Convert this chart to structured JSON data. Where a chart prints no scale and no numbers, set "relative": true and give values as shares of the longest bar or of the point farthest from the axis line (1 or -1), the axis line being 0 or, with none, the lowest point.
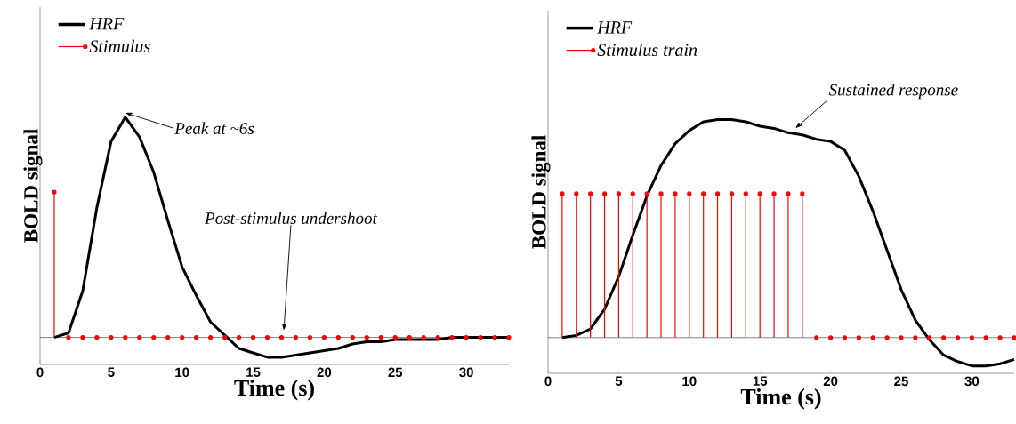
{
  "chart_data": [
    {
      "type": "line",
      "relative": true,
      "xlabel": "Time (s)",
      "ylabel": "BOLD signal",
      "xlim": [
        0,
        33
      ],
      "xticks": [
        0,
        5,
        10,
        15,
        20,
        25,
        30
      ],
      "legend": "top left",
      "x": [
        1,
        2,
        3,
        4,
        5,
        6,
        7,
        8,
        9,
        10,
        11,
        12,
        13,
        14,
        15,
        16,
        17,
        18,
        19,
        20,
        21,
        22,
        23,
        24,
        25,
        26,
        27,
        28,
        29,
        30,
        31,
        32,
        33
      ],
      "series": [
        {
          "name": "HRF",
          "color": "#000000",
          "marker": "none",
          "values": [
            0,
            0.02,
            0.21,
            0.59,
            0.89,
            1.0,
            0.91,
            0.75,
            0.53,
            0.32,
            0.19,
            0.07,
            0.01,
            -0.05,
            -0.07,
            -0.09,
            -0.09,
            -0.08,
            -0.07,
            -0.06,
            -0.05,
            -0.03,
            -0.02,
            -0.02,
            -0.01,
            -0.01,
            -0.01,
            -0.01,
            0,
            0,
            0,
            0,
            0
          ]
        },
        {
          "name": "Stimulus",
          "type": "lollipop",
          "color": "#ff0000",
          "marker": "circle",
          "values": [
            0.66,
            0,
            0,
            0,
            0,
            0,
            0,
            0,
            0,
            0,
            0,
            0,
            0,
            0,
            0,
            0,
            0,
            0,
            0,
            0,
            0,
            0,
            0,
            0,
            0,
            0,
            0,
            0,
            0,
            0,
            0,
            0,
            0
          ]
        }
      ],
      "annotations": [
        {
          "text": "Peak at ~6s",
          "x": 6,
          "y": 1.0
        },
        "Post-stimulus undershoot"
      ]
    },
    {
      "type": "line",
      "relative": true,
      "xlabel": "Time (s)",
      "ylabel": "BOLD signal",
      "xlim": [
        0,
        33
      ],
      "xticks": [
        0,
        5,
        10,
        15,
        20,
        25,
        30
      ],
      "legend": "top left",
      "x": [
        1,
        2,
        3,
        4,
        5,
        6,
        7,
        8,
        9,
        10,
        11,
        12,
        13,
        14,
        15,
        16,
        17,
        18,
        19,
        20,
        21,
        22,
        23,
        24,
        25,
        26,
        27,
        28,
        29,
        30,
        31,
        32,
        33
      ],
      "series": [
        {
          "name": "HRF",
          "color": "#000000",
          "marker": "none",
          "values": [
            0,
            0.01,
            0.04,
            0.13,
            0.28,
            0.47,
            0.65,
            0.79,
            0.89,
            0.95,
            0.99,
            1.0,
            1.0,
            0.99,
            0.97,
            0.96,
            0.94,
            0.93,
            0.91,
            0.9,
            0.86,
            0.74,
            0.58,
            0.4,
            0.22,
            0.08,
            -0.01,
            -0.08,
            -0.11,
            -0.13,
            -0.13,
            -0.12,
            -0.1
          ]
        },
        {
          "name": "Stimulus train",
          "type": "lollipop",
          "color": "#ff0000",
          "marker": "circle",
          "values": [
            0.66,
            0.66,
            0.66,
            0.66,
            0.66,
            0.66,
            0.66,
            0.66,
            0.66,
            0.66,
            0.66,
            0.66,
            0.66,
            0.66,
            0.66,
            0.66,
            0.66,
            0.66,
            0,
            0,
            0,
            0,
            0,
            0,
            0,
            0,
            0,
            0,
            0,
            0,
            0,
            0,
            0
          ]
        }
      ],
      "annotations": [
        {
          "text": "Sustained response",
          "x": 17.5,
          "y": 0.94
        }
      ]
    }
  ]
}
